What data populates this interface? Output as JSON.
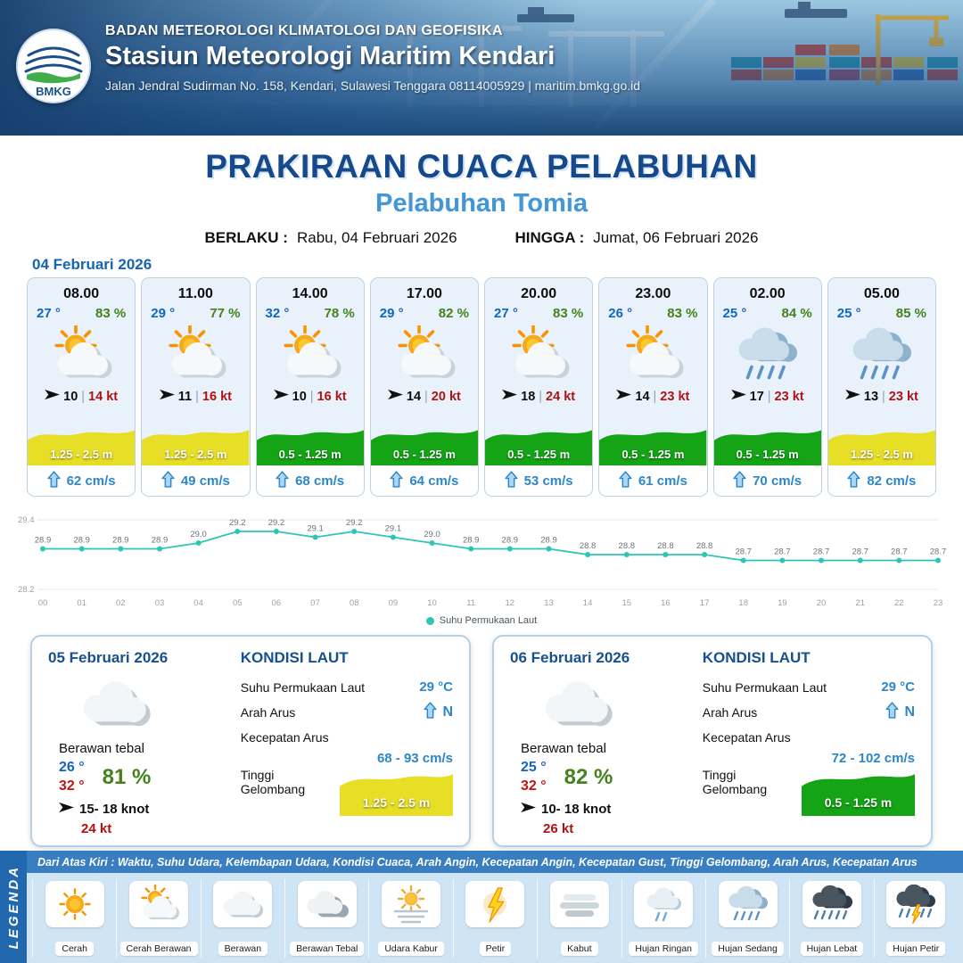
{
  "header": {
    "agency": "BADAN METEOROLOGI KLIMATOLOGI DAN GEOFISIKA",
    "station": "Stasiun Meteorologi Maritim Kendari",
    "address": "Jalan Jendral Sudirman No. 158, Kendari, Sulawesi Tenggara  08114005929 | maritim.bmkg.go.id",
    "logo": "BMKG"
  },
  "title": {
    "main": "PRAKIRAAN CUACA PELABUHAN",
    "port": "Pelabuhan Tomia",
    "valid_label": "BERLAKU :",
    "valid_value": "Rabu, 04 Februari 2026",
    "until_label": "HINGGA :",
    "until_value": "Jumat, 06 Februari 2026",
    "date_label": "04 Februari 2026"
  },
  "forecast_cards": [
    {
      "time": "08.00",
      "temp": "27 °",
      "humidity": "83 %",
      "icon": "cerah-berawan",
      "wind": "10",
      "gust": "14 kt",
      "wave": "1.25 - 2.5 m",
      "wave_color": "#e7df25",
      "current": "62 cm/s"
    },
    {
      "time": "11.00",
      "temp": "29 °",
      "humidity": "77 %",
      "icon": "cerah-berawan",
      "wind": "11",
      "gust": "16 kt",
      "wave": "1.25 - 2.5 m",
      "wave_color": "#e7df25",
      "current": "49 cm/s"
    },
    {
      "time": "14.00",
      "temp": "32 °",
      "humidity": "78 %",
      "icon": "cerah-berawan",
      "wind": "10",
      "gust": "16 kt",
      "wave": "0.5 - 1.25 m",
      "wave_color": "#14a415",
      "current": "68 cm/s"
    },
    {
      "time": "17.00",
      "temp": "29 °",
      "humidity": "82 %",
      "icon": "cerah-berawan",
      "wind": "14",
      "gust": "20 kt",
      "wave": "0.5 - 1.25 m",
      "wave_color": "#14a415",
      "current": "64 cm/s"
    },
    {
      "time": "20.00",
      "temp": "27 °",
      "humidity": "83 %",
      "icon": "cerah-berawan",
      "wind": "18",
      "gust": "24 kt",
      "wave": "0.5 - 1.25 m",
      "wave_color": "#14a415",
      "current": "53 cm/s"
    },
    {
      "time": "23.00",
      "temp": "26 °",
      "humidity": "83 %",
      "icon": "cerah-berawan",
      "wind": "14",
      "gust": "23 kt",
      "wave": "0.5 - 1.25 m",
      "wave_color": "#14a415",
      "current": "61 cm/s"
    },
    {
      "time": "02.00",
      "temp": "25 °",
      "humidity": "84 %",
      "icon": "hujan-sedang",
      "wind": "17",
      "gust": "23 kt",
      "wave": "0.5 - 1.25 m",
      "wave_color": "#14a415",
      "current": "70 cm/s"
    },
    {
      "time": "05.00",
      "temp": "25 °",
      "humidity": "85 %",
      "icon": "hujan-sedang",
      "wind": "13",
      "gust": "23 kt",
      "wave": "1.25 - 2.5 m",
      "wave_color": "#e7df25",
      "current": "82 cm/s"
    }
  ],
  "chart_data": {
    "type": "line",
    "title": "Suhu Permukaan Laut",
    "legend": "Suhu Permukaan Laut",
    "x": [
      "00",
      "01",
      "02",
      "03",
      "04",
      "05",
      "06",
      "07",
      "08",
      "09",
      "10",
      "11",
      "12",
      "13",
      "14",
      "15",
      "16",
      "17",
      "18",
      "19",
      "20",
      "21",
      "22",
      "23"
    ],
    "values": [
      28.9,
      28.9,
      28.9,
      28.9,
      29.0,
      29.2,
      29.2,
      29.1,
      29.2,
      29.1,
      29.0,
      28.9,
      28.9,
      28.9,
      28.8,
      28.8,
      28.8,
      28.8,
      28.7,
      28.7,
      28.7,
      28.7,
      28.7,
      28.7
    ],
    "ylim": [
      28.2,
      29.4
    ],
    "line_color": "#2cc5b6",
    "grid": "boundary-only",
    "legend_position": "bottom-center"
  },
  "daily_cards": [
    {
      "date": "05 Februari 2026",
      "icon": "berawan",
      "condition": "Berawan tebal",
      "temp_min": "26 °",
      "temp_max": "32 °",
      "humidity": "81 %",
      "wind": "15- 18 knot",
      "gust": "24 kt",
      "sea": {
        "title": "KONDISI LAUT",
        "sst_label": "Suhu Permukaan Laut",
        "sst": "29 °C",
        "dir_label": "Arah Arus",
        "dir": "N",
        "speed_label": "Kecepatan Arus",
        "speed": "68 - 93 cm/s",
        "wave_label": "Tinggi Gelombang",
        "wave": "1.25 - 2.5 m",
        "wave_color": "#e7df25"
      }
    },
    {
      "date": "06 Februari 2026",
      "icon": "berawan",
      "condition": "Berawan tebal",
      "temp_min": "25 °",
      "temp_max": "32 °",
      "humidity": "82 %",
      "wind": "10- 18 knot",
      "gust": "26 kt",
      "sea": {
        "title": "KONDISI LAUT",
        "sst_label": "Suhu Permukaan Laut",
        "sst": "29 °C",
        "dir_label": "Arah Arus",
        "dir": "N",
        "speed_label": "Kecepatan Arus",
        "speed": "72 - 102 cm/s",
        "wave_label": "Tinggi Gelombang",
        "wave": "0.5 - 1.25 m",
        "wave_color": "#14a415"
      }
    }
  ],
  "legend": {
    "title": "LEGENDA",
    "description": "Dari Atas Kiri : Waktu, Suhu Udara, Kelembapan Udara, Kondisi Cuaca, Arah Angin, Kecepatan Angin, Kecepatan Gust, Tinggi Gelombang, Arah Arus, Kecepatan Arus",
    "items": [
      {
        "icon": "cerah",
        "label": "Cerah"
      },
      {
        "icon": "cerah-berawan",
        "label": "Cerah Berawan"
      },
      {
        "icon": "berawan",
        "label": "Berawan"
      },
      {
        "icon": "berawan-tebal",
        "label": "Berawan Tebal"
      },
      {
        "icon": "udara-kabur",
        "label": "Udara Kabur"
      },
      {
        "icon": "petir",
        "label": "Petir"
      },
      {
        "icon": "kabut",
        "label": "Kabut"
      },
      {
        "icon": "hujan-ringan",
        "label": "Hujan Ringan"
      },
      {
        "icon": "hujan-sedang",
        "label": "Hujan Sedang"
      },
      {
        "icon": "hujan-lebat",
        "label": "Hujan Lebat"
      },
      {
        "icon": "hujan-petir",
        "label": "Hujan Petir"
      }
    ]
  },
  "colors": {
    "accent_blue": "#1565c0",
    "humidity_green": "#44821b",
    "gust_red": "#b01212",
    "wave_yellow": "#e7df25",
    "wave_green": "#14a415",
    "sea_blue": "#2e86c8"
  }
}
